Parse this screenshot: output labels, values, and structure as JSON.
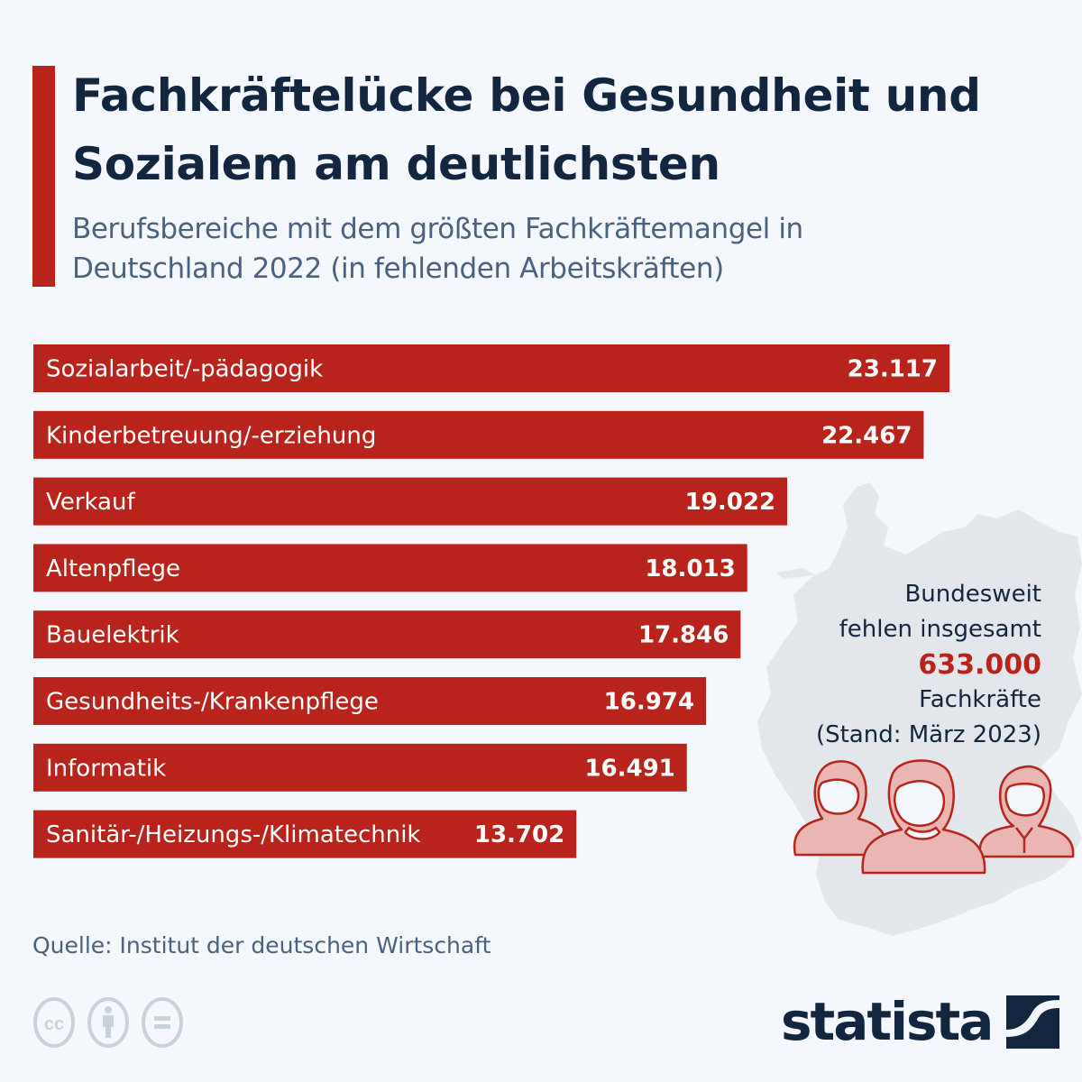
{
  "header": {
    "title": "Fachkräftelücke bei Gesundheit und Sozialem am deutlichsten",
    "subtitle": "Berufsbereiche mit dem größten Fachkräftemangel in Deutschland 2022 (in fehlenden Arbeitskräften)"
  },
  "colors": {
    "accent": "#b8241b",
    "title": "#13263f",
    "subtitle": "#4a6280",
    "background": "#f4f7fb",
    "map": "#e3e6ea"
  },
  "chart_data": {
    "type": "bar",
    "orientation": "horizontal",
    "title": "Fachkräftelücke bei Gesundheit und Sozialem am deutlichsten",
    "subtitle": "Berufsbereiche mit dem größten Fachkräftemangel in Deutschland 2022 (in fehlenden Arbeitskräften)",
    "xlabel": "",
    "ylabel": "",
    "categories": [
      "Sozialarbeit/-pädagogik",
      "Kinderbetreuung/-erziehung",
      "Verkauf",
      "Altenpflege",
      "Bauelektrik",
      "Gesundheits-/Krankenpflege",
      "Informatik",
      "Sanitär-/Heizungs-/Klimatechnik"
    ],
    "values": [
      23117,
      22467,
      19022,
      18013,
      17846,
      16974,
      16491,
      13702
    ],
    "value_labels": [
      "23.117",
      "22.467",
      "19.022",
      "18.013",
      "17.846",
      "16.974",
      "16.491",
      "13.702"
    ],
    "xlim": [
      0,
      23117
    ],
    "grid": false,
    "legend": "none"
  },
  "annotation": {
    "line1": "Bundesweit",
    "line2": "fehlen insgesamt",
    "total": "633.000",
    "line4": "Fachkräfte",
    "line5": "(Stand: März 2023)",
    "icon": "people-group-icon"
  },
  "footer": {
    "source": "Quelle: Institut der deutschen Wirtschaft",
    "license_icons": [
      "cc-icon",
      "attribution-icon",
      "no-derivatives-icon"
    ],
    "logo_text": "statista"
  }
}
